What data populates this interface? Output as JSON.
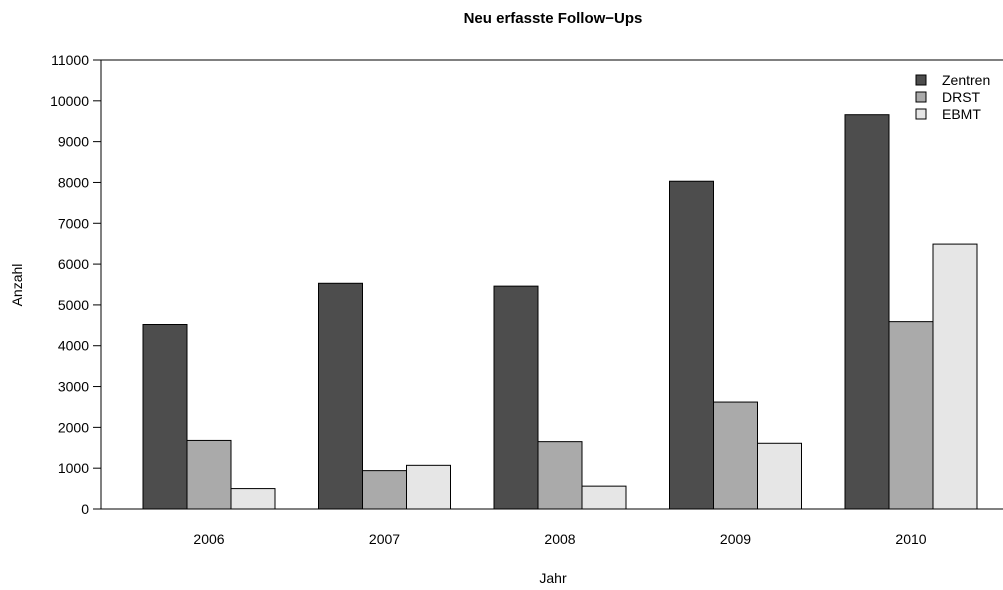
{
  "chart_data": {
    "type": "bar",
    "title": "Neu erfasste Follow−Ups",
    "xlabel": "Jahr",
    "ylabel": "Anzahl",
    "categories": [
      "2006",
      "2007",
      "2008",
      "2009",
      "2010"
    ],
    "series": [
      {
        "name": "Zentren",
        "color": "#4d4d4d",
        "values": [
          4520,
          5530,
          5460,
          8030,
          9660
        ]
      },
      {
        "name": "DRST",
        "color": "#aaaaaa",
        "values": [
          1680,
          940,
          1650,
          2620,
          4590
        ]
      },
      {
        "name": "EBMT",
        "color": "#e6e6e6",
        "values": [
          500,
          1070,
          560,
          1610,
          6490
        ]
      }
    ],
    "ylim": [
      0,
      11000
    ],
    "yticks": [
      0,
      1000,
      2000,
      3000,
      4000,
      5000,
      6000,
      7000,
      8000,
      9000,
      10000,
      11000
    ],
    "legend_position": "top-right",
    "grid": false
  }
}
